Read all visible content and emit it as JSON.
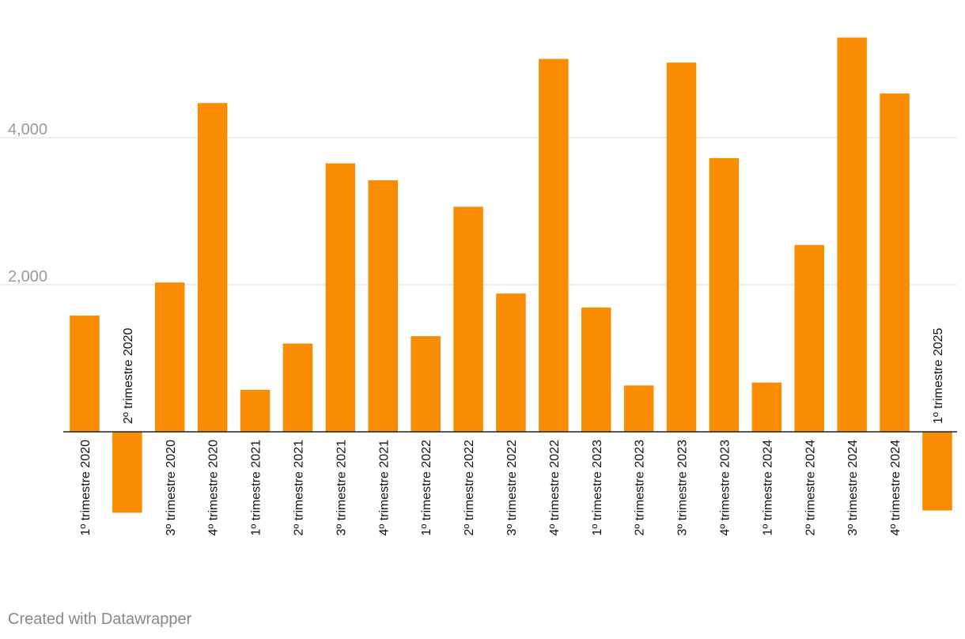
{
  "chart_data": {
    "type": "bar",
    "title": "",
    "xlabel": "",
    "ylabel": "",
    "ylim": [
      -1200,
      5400
    ],
    "yticks": [
      2000,
      4000
    ],
    "ytick_labels": [
      "2,000",
      "4,000"
    ],
    "grid": true,
    "categories": [
      "1º trimestre 2020",
      "2º trimestre 2020",
      "3º trimestre 2020",
      "4º trimestre 2020",
      "1º trimestre 2021",
      "2º trimestre 2021",
      "3º trimestre 2021",
      "4º trimestre 2021",
      "1º trimestre 2022",
      "2º trimestre 2022",
      "3º trimestre 2022",
      "4º trimestre 2022",
      "1º trimestre 2023",
      "2º trimestre 2023",
      "3º trimestre 2023",
      "4º trimestre 2023",
      "1º trimestre 2024",
      "2º trimestre 2024",
      "3º trimestre 2024",
      "4º trimestre 2024",
      "1º trimestre 2025"
    ],
    "values": [
      1580,
      -1100,
      2030,
      4470,
      570,
      1200,
      3650,
      3420,
      1300,
      3060,
      1880,
      5070,
      1690,
      630,
      5020,
      3720,
      670,
      2540,
      5360,
      4600,
      -1070
    ],
    "bar_color": "#f98c00"
  },
  "footer": {
    "credit": "Created with Datawrapper"
  }
}
